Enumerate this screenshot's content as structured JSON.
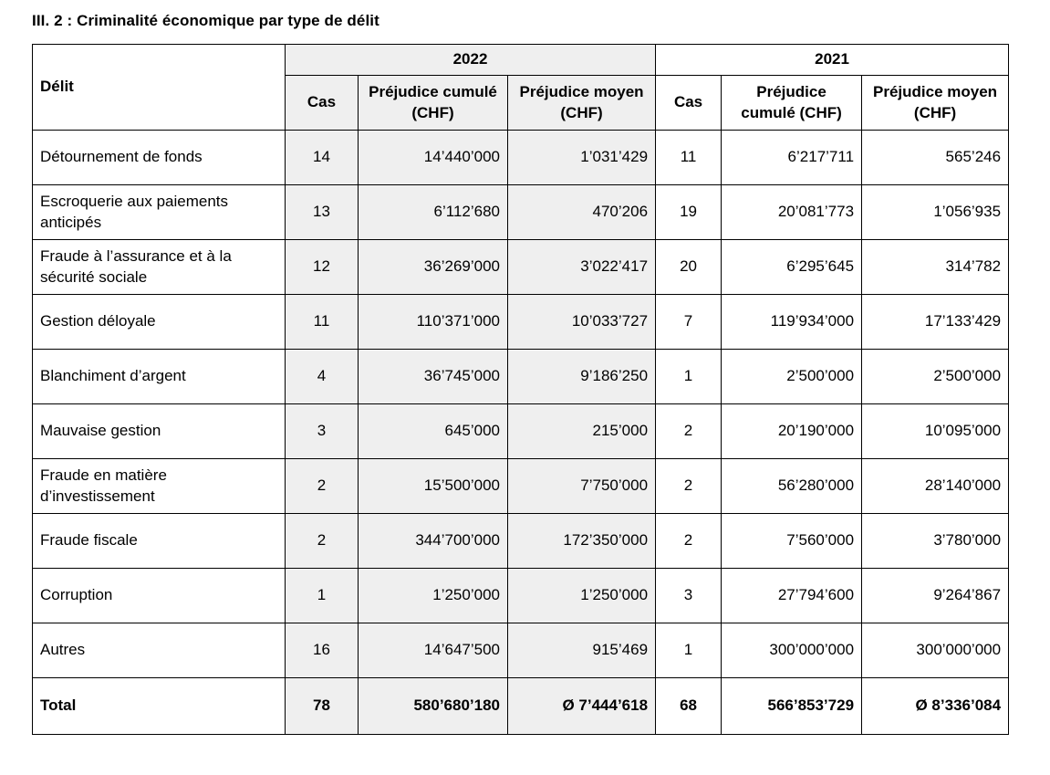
{
  "page": {
    "title": "III. 2 : Criminalité économique par type de délit"
  },
  "colors": {
    "shaded_column_bg": "#efefef",
    "border": "#000000",
    "text": "#000000"
  },
  "table": {
    "delit_header": "Délit",
    "years": [
      "2022",
      "2021"
    ],
    "columns": [
      "Cas",
      "Préjudice cumulé (CHF)",
      "Préjudice moyen (CHF)"
    ],
    "rows": [
      {
        "delit": "Détournement de fonds",
        "y22": {
          "cas": "14",
          "cum": "14’440’000",
          "moy": "1’031’429"
        },
        "y21": {
          "cas": "11",
          "cum": "6’217’711",
          "moy": "565’246"
        }
      },
      {
        "delit": "Escroquerie aux paiements anticipés",
        "y22": {
          "cas": "13",
          "cum": "6’112’680",
          "moy": "470’206"
        },
        "y21": {
          "cas": "19",
          "cum": "20’081’773",
          "moy": "1’056’935"
        }
      },
      {
        "delit": "Fraude à l’assurance et à la sécurité sociale",
        "y22": {
          "cas": "12",
          "cum": "36’269’000",
          "moy": "3’022’417"
        },
        "y21": {
          "cas": "20",
          "cum": "6’295’645",
          "moy": "314’782"
        }
      },
      {
        "delit": "Gestion déloyale",
        "y22": {
          "cas": "11",
          "cum": "110’371’000",
          "moy": "10’033’727"
        },
        "y21": {
          "cas": "7",
          "cum": "119’934’000",
          "moy": "17’133’429"
        }
      },
      {
        "delit": "Blanchiment d’argent",
        "y22": {
          "cas": "4",
          "cum": "36’745’000",
          "moy": "9’186’250"
        },
        "y21": {
          "cas": "1",
          "cum": "2’500’000",
          "moy": "2’500’000"
        }
      },
      {
        "delit": "Mauvaise gestion",
        "y22": {
          "cas": "3",
          "cum": "645’000",
          "moy": "215’000"
        },
        "y21": {
          "cas": "2",
          "cum": "20’190’000",
          "moy": "10’095’000"
        }
      },
      {
        "delit": "Fraude en matière d’investissement",
        "y22": {
          "cas": "2",
          "cum": "15’500’000",
          "moy": "7’750’000"
        },
        "y21": {
          "cas": "2",
          "cum": "56’280’000",
          "moy": "28’140’000"
        }
      },
      {
        "delit": "Fraude fiscale",
        "y22": {
          "cas": "2",
          "cum": "344’700’000",
          "moy": "172’350’000"
        },
        "y21": {
          "cas": "2",
          "cum": "7’560’000",
          "moy": "3’780’000"
        }
      },
      {
        "delit": "Corruption",
        "y22": {
          "cas": "1",
          "cum": "1’250’000",
          "moy": "1’250’000"
        },
        "y21": {
          "cas": "3",
          "cum": "27’794’600",
          "moy": "9’264’867"
        }
      },
      {
        "delit": "Autres",
        "y22": {
          "cas": "16",
          "cum": "14’647’500",
          "moy": "915’469"
        },
        "y21": {
          "cas": "1",
          "cum": "300’000’000",
          "moy": "300’000’000"
        }
      }
    ],
    "total": {
      "label": "Total",
      "y22": {
        "cas": "78",
        "cum": "580’680’180",
        "moy": "Ø 7’444’618"
      },
      "y21": {
        "cas": "68",
        "cum": "566’853’729",
        "moy": "Ø 8’336’084"
      }
    }
  }
}
